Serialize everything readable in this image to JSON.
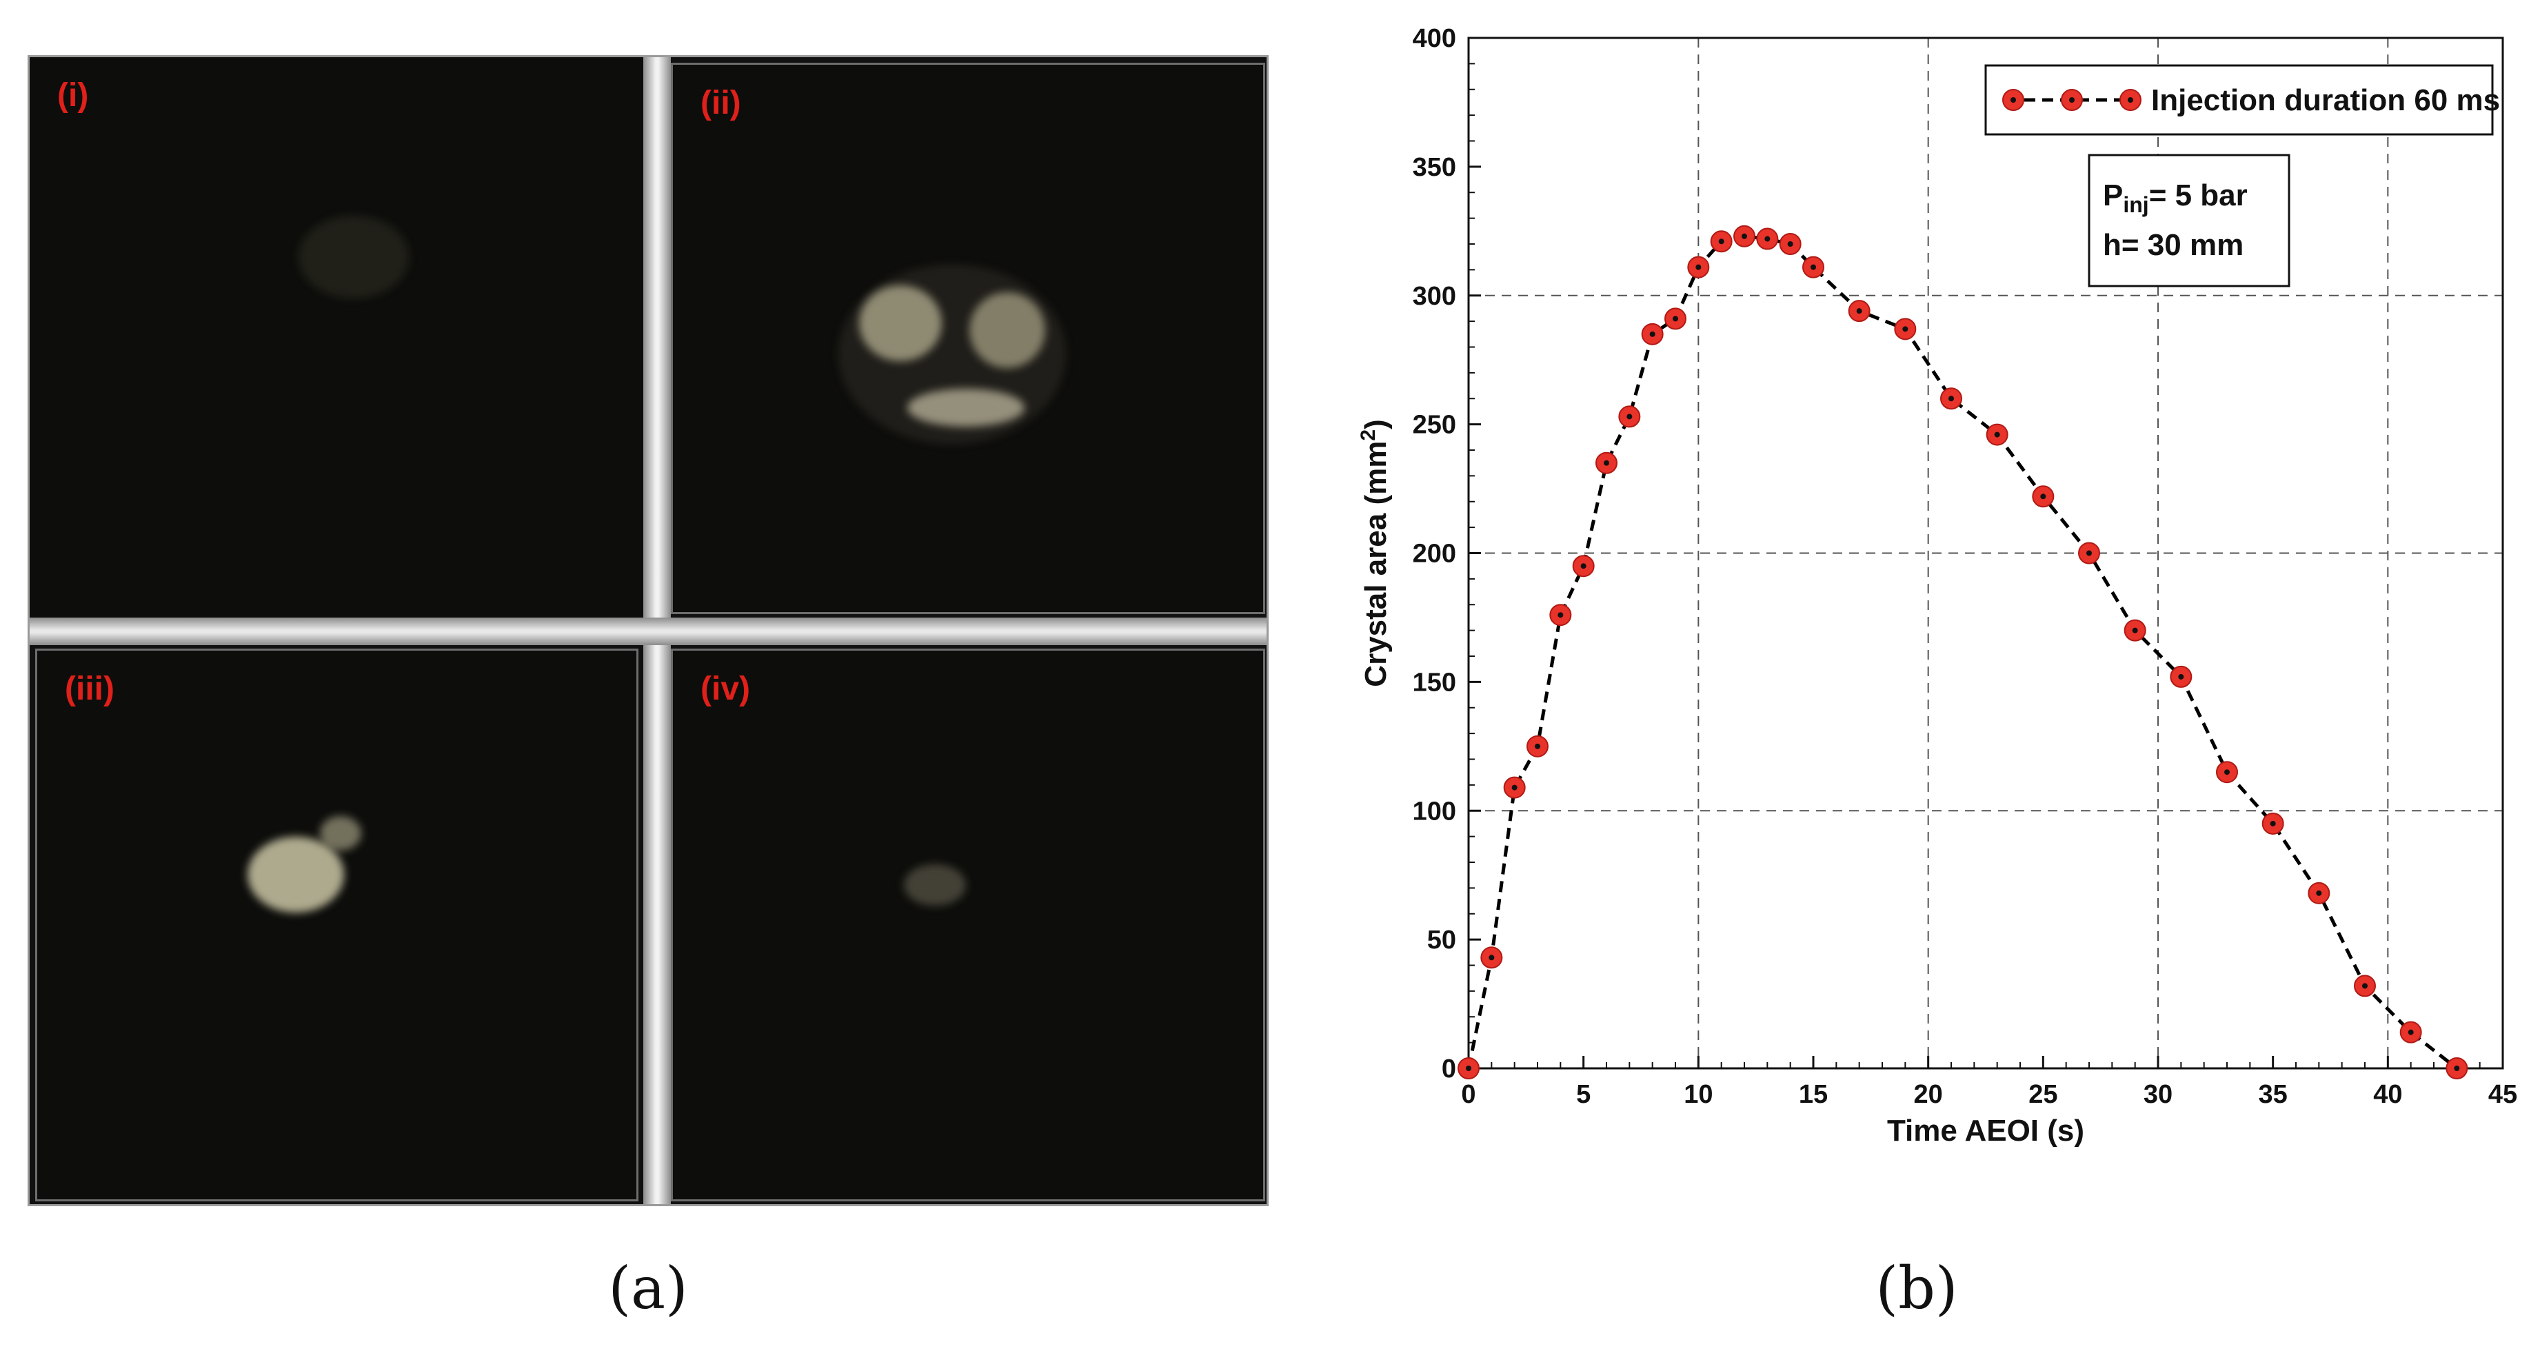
{
  "panel_a": {
    "caption": "(a)",
    "photos": [
      {
        "label": "(i)"
      },
      {
        "label": "(ii)"
      },
      {
        "label": "(iii)"
      },
      {
        "label": "(iv)"
      }
    ]
  },
  "panel_b": {
    "caption": "(b)"
  },
  "colors": {
    "marker_fill": "#e8332a",
    "marker_center": "#111111",
    "line": "#000000",
    "label_red": "#e0201a"
  },
  "chart_data": {
    "type": "line",
    "title": "",
    "xlabel": "Time AEOI (s)",
    "ylabel": "Crystal area (mm",
    "ylabel_sup": "2",
    "ylabel_end": ")",
    "xlim": [
      0,
      45
    ],
    "ylim": [
      0,
      400
    ],
    "x_ticks": [
      0,
      5,
      10,
      15,
      20,
      25,
      30,
      35,
      40,
      45
    ],
    "y_ticks": [
      0,
      50,
      100,
      150,
      200,
      250,
      300,
      350,
      400
    ],
    "grid": "dashed, every 10 s on x and every 100 mm² on y",
    "legend_position": "top-right",
    "annotation": {
      "p_main": "P",
      "p_sub": "inj",
      "p_rest": "= 5 bar",
      "h_line": "h= 30 mm"
    },
    "series": [
      {
        "name": "Injection duration 60 ms",
        "marker": "red circle with black dot",
        "line_style": "dashed",
        "x": [
          0,
          1,
          2,
          3,
          4,
          5,
          6,
          7,
          8,
          9,
          10,
          11,
          12,
          13,
          14,
          15,
          17,
          19,
          21,
          23,
          25,
          27,
          29,
          31,
          33,
          35,
          37,
          39,
          41,
          43
        ],
        "y": [
          0,
          43,
          109,
          125,
          176,
          195,
          235,
          253,
          285,
          291,
          311,
          321,
          323,
          322,
          320,
          311,
          294,
          287,
          260,
          246,
          222,
          200,
          170,
          152,
          115,
          95,
          68,
          32,
          14,
          0
        ]
      }
    ]
  }
}
